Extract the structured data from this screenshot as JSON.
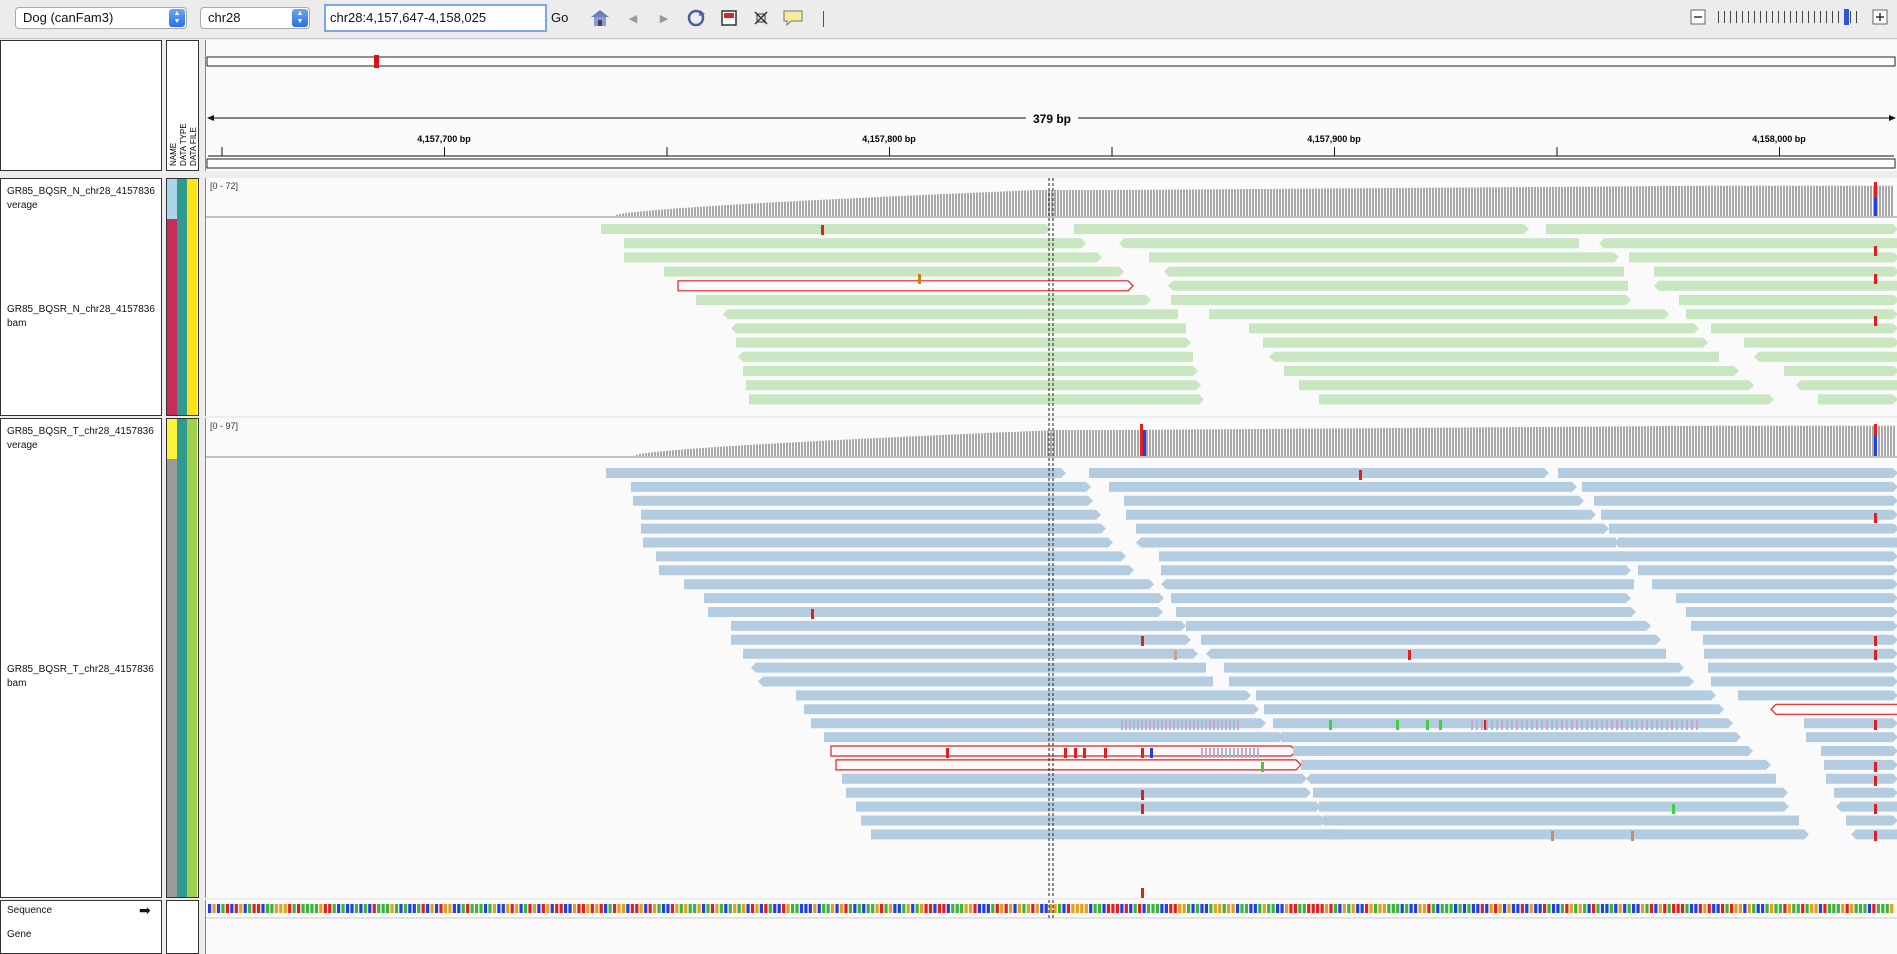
{
  "toolbar": {
    "genome": "Dog (canFam3)",
    "chromosome": "chr28",
    "locus": "chr28:4,157,647-4,158,025",
    "go_label": "Go",
    "icons": [
      "home-icon",
      "back-icon",
      "forward-icon",
      "refresh-icon",
      "roi-icon",
      "fit-icon",
      "popup-icon"
    ],
    "zoom_minus": "−",
    "zoom_plus": "+"
  },
  "ruler": {
    "span_label": "379 bp",
    "ticks": [
      "4,157,700 bp",
      "4,157,800 bp",
      "4,157,900 bp",
      "4,158,000 bp"
    ]
  },
  "attribute_headers": [
    "NAME",
    "DATA TYPE",
    "DATA FILE"
  ],
  "tracks": {
    "normal_coverage": {
      "name": "GR85_BQSR_N_chr28_4157836",
      "sub": "verage",
      "range": "[0 - 72]"
    },
    "normal_bam": {
      "name": "GR85_BQSR_N_chr28_4157836",
      "sub": "bam"
    },
    "tumor_coverage": {
      "name": "GR85_BQSR_T_chr28_4157836",
      "sub": "verage",
      "range": "[0 - 97]"
    },
    "tumor_bam": {
      "name": "GR85_BQSR_T_chr28_4157836",
      "sub": "bam"
    }
  },
  "bottom": {
    "sequence_label": "Sequence",
    "gene_label": "Gene"
  },
  "colors": {
    "normal_read": "#c8e6c0",
    "tumor_read": "#b4cce0",
    "coverage": "#a8a8a8",
    "mismatch": "#e8202a"
  }
}
